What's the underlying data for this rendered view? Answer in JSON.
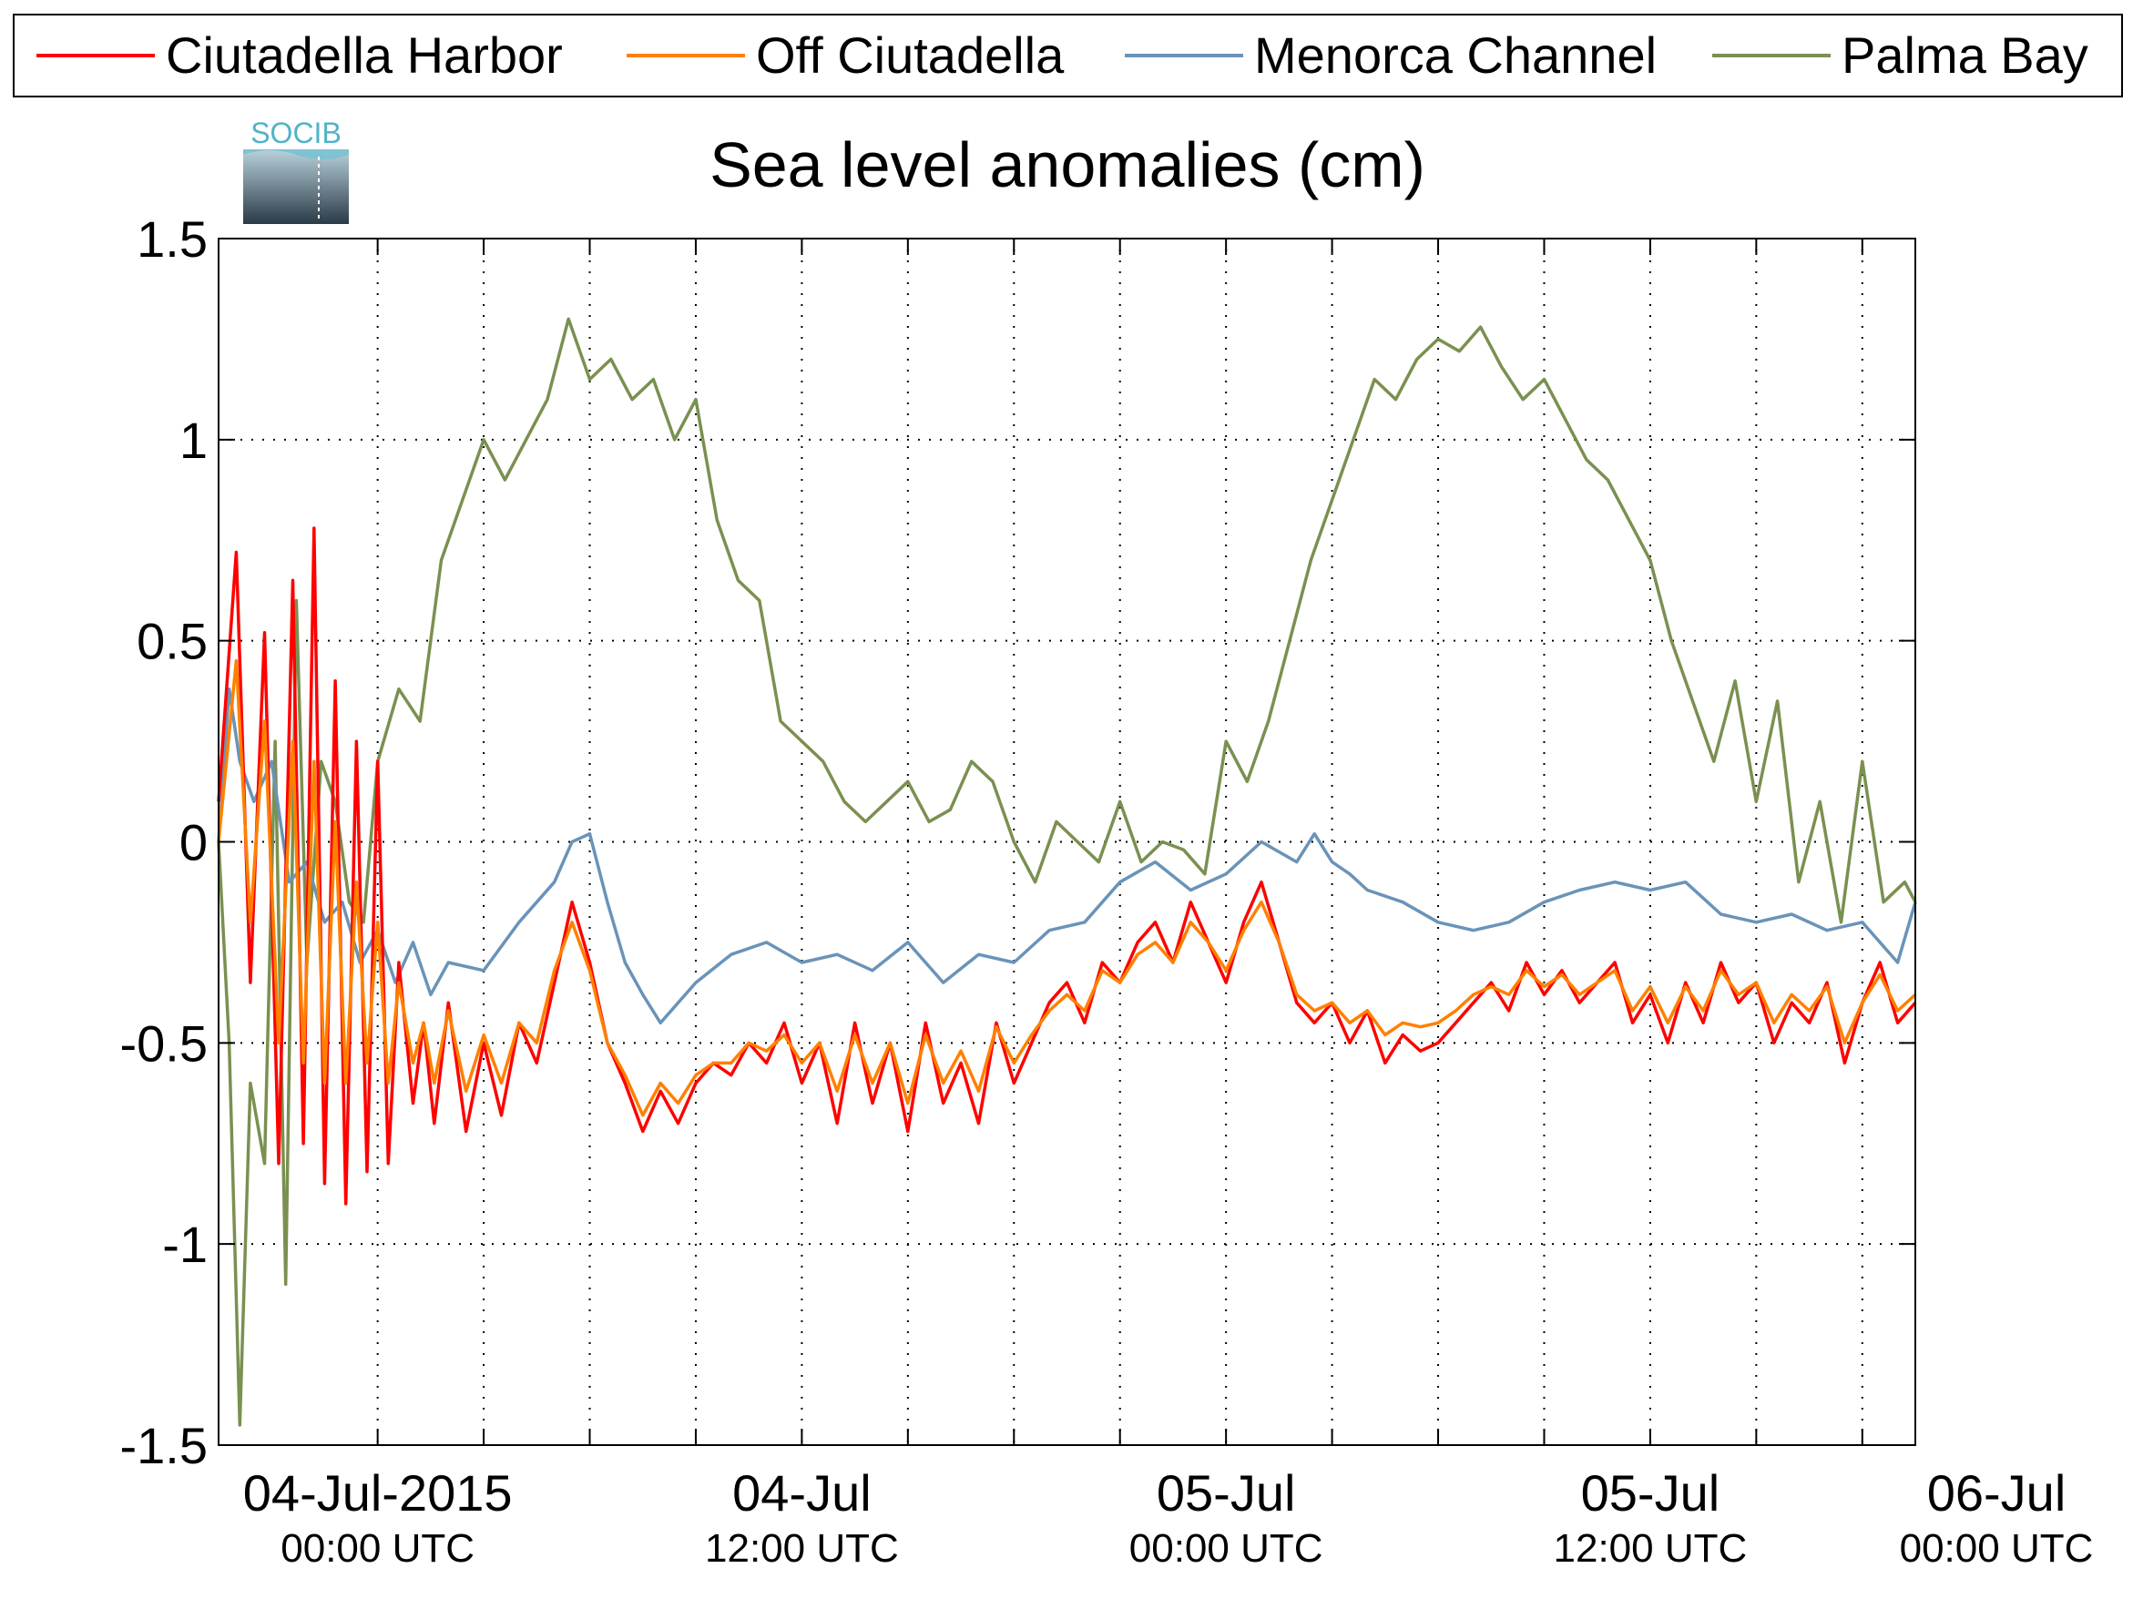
{
  "chart_data": {
    "type": "line",
    "title": "Sea level anomalies (cm)",
    "logo_text": "SOCIB",
    "xlabel": "",
    "ylabel": "",
    "ylim": [
      -1.5,
      1.5
    ],
    "yticks": [
      1.5,
      1,
      0.5,
      0,
      -0.5,
      -1,
      -1.5
    ],
    "ytick_labels": [
      "1.5",
      "1",
      "0.5",
      "0",
      "-0.5",
      "-1",
      "-1.5"
    ],
    "xlim_hours": [
      -4.5,
      43.5
    ],
    "x_minor_ticks_hours": [
      3,
      6,
      9,
      15,
      18,
      21,
      27,
      30,
      33,
      39,
      42
    ],
    "xticks": [
      {
        "hour": 0,
        "date": "04-Jul-2015",
        "time": "00:00 UTC"
      },
      {
        "hour": 12,
        "date": "04-Jul",
        "time": "12:00 UTC"
      },
      {
        "hour": 24,
        "date": "05-Jul",
        "time": "00:00 UTC"
      },
      {
        "hour": 36,
        "date": "05-Jul",
        "time": "12:00 UTC"
      },
      {
        "hour": 48,
        "date": "06-Jul",
        "time": "00:00 UTC"
      }
    ],
    "grid": true,
    "legend_position": "top",
    "series": [
      {
        "name": "Ciutadella Harbor",
        "color": "#ff0000",
        "x": [
          -4.5,
          -4.0,
          -3.6,
          -3.2,
          -2.8,
          -2.4,
          -2.1,
          -1.8,
          -1.5,
          -1.2,
          -0.9,
          -0.6,
          -0.3,
          0,
          0.3,
          0.6,
          1.0,
          1.3,
          1.6,
          2.0,
          2.5,
          3.0,
          3.5,
          4.0,
          4.5,
          5.0,
          5.5,
          6.0,
          6.5,
          7.0,
          7.5,
          8.0,
          8.5,
          9.0,
          9.5,
          10.0,
          10.5,
          11.0,
          11.5,
          12.0,
          12.5,
          13.0,
          13.5,
          14.0,
          14.5,
          15.0,
          15.5,
          16.0,
          16.5,
          17.0,
          17.5,
          18.0,
          18.5,
          19.0,
          19.5,
          20.0,
          20.5,
          21.0,
          21.5,
          22.0,
          22.5,
          23.0,
          23.5,
          24.0,
          24.5,
          25.0,
          25.5,
          26.0,
          26.5,
          27.0,
          27.5,
          28.0,
          28.5,
          29.0,
          29.5,
          30.0,
          30.5,
          31.0,
          31.5,
          32.0,
          32.5,
          33.0,
          33.5,
          34.0,
          34.5,
          35.0,
          35.5,
          36.0,
          36.5,
          37.0,
          37.5,
          38.0,
          38.5,
          39.0,
          39.5,
          40.0,
          40.5,
          41.0,
          41.5,
          42.0,
          42.5,
          43.0,
          43.5
        ],
        "y": [
          0.1,
          0.72,
          -0.35,
          0.52,
          -0.8,
          0.65,
          -0.75,
          0.78,
          -0.85,
          0.4,
          -0.9,
          0.25,
          -0.82,
          0.2,
          -0.8,
          -0.3,
          -0.65,
          -0.45,
          -0.7,
          -0.4,
          -0.72,
          -0.5,
          -0.68,
          -0.45,
          -0.55,
          -0.35,
          -0.15,
          -0.3,
          -0.5,
          -0.6,
          -0.72,
          -0.62,
          -0.7,
          -0.6,
          -0.55,
          -0.58,
          -0.5,
          -0.55,
          -0.45,
          -0.6,
          -0.5,
          -0.7,
          -0.45,
          -0.65,
          -0.5,
          -0.72,
          -0.45,
          -0.65,
          -0.55,
          -0.7,
          -0.45,
          -0.6,
          -0.5,
          -0.4,
          -0.35,
          -0.45,
          -0.3,
          -0.35,
          -0.25,
          -0.2,
          -0.3,
          -0.15,
          -0.25,
          -0.35,
          -0.2,
          -0.1,
          -0.25,
          -0.4,
          -0.45,
          -0.4,
          -0.5,
          -0.42,
          -0.55,
          -0.48,
          -0.52,
          -0.5,
          -0.45,
          -0.4,
          -0.35,
          -0.42,
          -0.3,
          -0.38,
          -0.32,
          -0.4,
          -0.35,
          -0.3,
          -0.45,
          -0.38,
          -0.5,
          -0.35,
          -0.45,
          -0.3,
          -0.4,
          -0.35,
          -0.5,
          -0.4,
          -0.45,
          -0.35,
          -0.55,
          -0.4,
          -0.3,
          -0.45,
          -0.4
        ]
      },
      {
        "name": "Off Ciutadella",
        "color": "#ff8000",
        "x": [
          -4.5,
          -4.0,
          -3.6,
          -3.2,
          -2.8,
          -2.4,
          -2.1,
          -1.8,
          -1.5,
          -1.2,
          -0.9,
          -0.6,
          -0.3,
          0,
          0.3,
          0.6,
          1.0,
          1.3,
          1.6,
          2.0,
          2.5,
          3.0,
          3.5,
          4.0,
          4.5,
          5.0,
          5.5,
          6.0,
          6.5,
          7.0,
          7.5,
          8.0,
          8.5,
          9.0,
          9.5,
          10.0,
          10.5,
          11.0,
          11.5,
          12.0,
          12.5,
          13.0,
          13.5,
          14.0,
          14.5,
          15.0,
          15.5,
          16.0,
          16.5,
          17.0,
          17.5,
          18.0,
          18.5,
          19.0,
          19.5,
          20.0,
          20.5,
          21.0,
          21.5,
          22.0,
          22.5,
          23.0,
          23.5,
          24.0,
          24.5,
          25.0,
          25.5,
          26.0,
          26.5,
          27.0,
          27.5,
          28.0,
          28.5,
          29.0,
          29.5,
          30.0,
          30.5,
          31.0,
          31.5,
          32.0,
          32.5,
          33.0,
          33.5,
          34.0,
          34.5,
          35.0,
          35.5,
          36.0,
          36.5,
          37.0,
          37.5,
          38.0,
          38.5,
          39.0,
          39.5,
          40.0,
          40.5,
          41.0,
          41.5,
          42.0,
          42.5,
          43.0,
          43.5
        ],
        "y": [
          0.0,
          0.45,
          -0.2,
          0.3,
          -0.5,
          0.25,
          -0.55,
          0.2,
          -0.6,
          0.05,
          -0.6,
          -0.1,
          -0.55,
          -0.2,
          -0.6,
          -0.35,
          -0.55,
          -0.45,
          -0.6,
          -0.42,
          -0.62,
          -0.48,
          -0.6,
          -0.45,
          -0.5,
          -0.32,
          -0.2,
          -0.32,
          -0.5,
          -0.58,
          -0.68,
          -0.6,
          -0.65,
          -0.58,
          -0.55,
          -0.55,
          -0.5,
          -0.52,
          -0.48,
          -0.55,
          -0.5,
          -0.62,
          -0.48,
          -0.6,
          -0.5,
          -0.65,
          -0.48,
          -0.6,
          -0.52,
          -0.62,
          -0.46,
          -0.55,
          -0.48,
          -0.42,
          -0.38,
          -0.42,
          -0.32,
          -0.35,
          -0.28,
          -0.25,
          -0.3,
          -0.2,
          -0.25,
          -0.32,
          -0.22,
          -0.15,
          -0.25,
          -0.38,
          -0.42,
          -0.4,
          -0.45,
          -0.42,
          -0.48,
          -0.45,
          -0.46,
          -0.45,
          -0.42,
          -0.38,
          -0.36,
          -0.38,
          -0.32,
          -0.36,
          -0.33,
          -0.38,
          -0.35,
          -0.32,
          -0.42,
          -0.36,
          -0.45,
          -0.36,
          -0.42,
          -0.32,
          -0.38,
          -0.35,
          -0.45,
          -0.38,
          -0.42,
          -0.36,
          -0.5,
          -0.4,
          -0.33,
          -0.42,
          -0.38
        ]
      },
      {
        "name": "Menorca Channel",
        "color": "#6a93b8",
        "x": [
          -4.5,
          -4.2,
          -3.9,
          -3.5,
          -3.0,
          -2.5,
          -2.0,
          -1.5,
          -1.0,
          -0.5,
          0,
          0.5,
          1.0,
          1.5,
          2.0,
          3.0,
          4.0,
          5.0,
          5.5,
          6.0,
          6.5,
          7.0,
          7.5,
          8.0,
          9.0,
          10.0,
          11.0,
          12.0,
          13.0,
          14.0,
          15.0,
          16.0,
          17.0,
          18.0,
          19.0,
          20.0,
          21.0,
          22.0,
          23.0,
          24.0,
          25.0,
          26.0,
          26.5,
          27.0,
          27.5,
          28.0,
          29.0,
          30.0,
          31.0,
          32.0,
          33.0,
          34.0,
          35.0,
          36.0,
          37.0,
          38.0,
          39.0,
          40.0,
          41.0,
          42.0,
          43.0,
          43.5
        ],
        "y": [
          0.0,
          0.38,
          0.2,
          0.1,
          0.2,
          -0.1,
          -0.05,
          -0.2,
          -0.15,
          -0.3,
          -0.22,
          -0.35,
          -0.25,
          -0.38,
          -0.3,
          -0.32,
          -0.2,
          -0.1,
          0.0,
          0.02,
          -0.15,
          -0.3,
          -0.38,
          -0.45,
          -0.35,
          -0.28,
          -0.25,
          -0.3,
          -0.28,
          -0.32,
          -0.25,
          -0.35,
          -0.28,
          -0.3,
          -0.22,
          -0.2,
          -0.1,
          -0.05,
          -0.12,
          -0.08,
          0.0,
          -0.05,
          0.02,
          -0.05,
          -0.08,
          -0.12,
          -0.15,
          -0.2,
          -0.22,
          -0.2,
          -0.15,
          -0.12,
          -0.1,
          -0.12,
          -0.1,
          -0.18,
          -0.2,
          -0.18,
          -0.22,
          -0.2,
          -0.3,
          -0.15
        ]
      },
      {
        "name": "Palma Bay",
        "color": "#7a9050",
        "x": [
          -4.5,
          -4.2,
          -3.9,
          -3.6,
          -3.2,
          -2.9,
          -2.6,
          -2.3,
          -2.0,
          -1.6,
          -1.2,
          -0.8,
          -0.4,
          0,
          0.6,
          1.2,
          1.8,
          2.4,
          3.0,
          3.6,
          4.2,
          4.8,
          5.4,
          6.0,
          6.6,
          7.2,
          7.8,
          8.4,
          9.0,
          9.6,
          10.2,
          10.8,
          11.4,
          12.0,
          12.6,
          13.2,
          13.8,
          14.4,
          15.0,
          15.6,
          16.2,
          16.8,
          17.4,
          18.0,
          18.6,
          19.2,
          19.8,
          20.4,
          21.0,
          21.6,
          22.2,
          22.8,
          23.4,
          24.0,
          24.6,
          25.2,
          25.8,
          26.4,
          27.0,
          27.6,
          28.2,
          28.8,
          29.4,
          30.0,
          30.6,
          31.2,
          31.8,
          32.4,
          33.0,
          33.6,
          34.2,
          34.8,
          35.4,
          36.0,
          36.6,
          37.2,
          37.8,
          38.4,
          39.0,
          39.6,
          40.2,
          40.8,
          41.4,
          42.0,
          42.6,
          43.2,
          43.5
        ],
        "y": [
          0.0,
          -0.5,
          -1.45,
          -0.6,
          -0.8,
          0.25,
          -1.1,
          0.6,
          -0.3,
          0.2,
          0.1,
          -0.15,
          -0.2,
          0.2,
          0.38,
          0.3,
          0.7,
          0.85,
          1.0,
          0.9,
          1.0,
          1.1,
          1.3,
          1.15,
          1.2,
          1.1,
          1.15,
          1.0,
          1.1,
          0.8,
          0.65,
          0.6,
          0.3,
          0.25,
          0.2,
          0.1,
          0.05,
          0.1,
          0.15,
          0.05,
          0.08,
          0.2,
          0.15,
          0.0,
          -0.1,
          0.05,
          0.0,
          -0.05,
          0.1,
          -0.05,
          0.0,
          -0.02,
          -0.08,
          0.25,
          0.15,
          0.3,
          0.5,
          0.7,
          0.85,
          1.0,
          1.15,
          1.1,
          1.2,
          1.25,
          1.22,
          1.28,
          1.18,
          1.1,
          1.15,
          1.05,
          0.95,
          0.9,
          0.8,
          0.7,
          0.5,
          0.35,
          0.2,
          0.4,
          0.1,
          0.35,
          -0.1,
          0.1,
          -0.2,
          0.2,
          -0.15,
          -0.1,
          -0.15
        ]
      }
    ]
  }
}
